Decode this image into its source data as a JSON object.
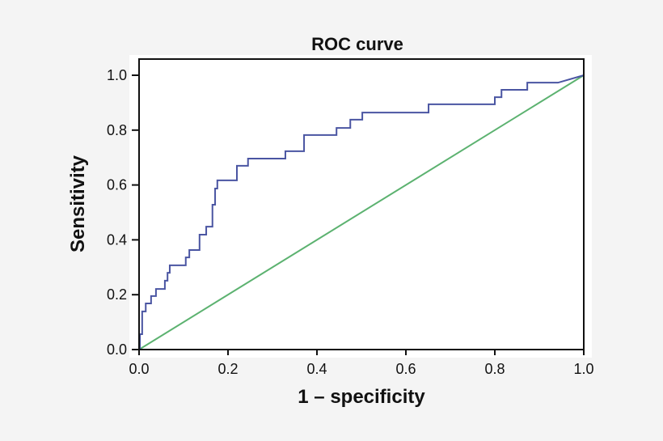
{
  "chart_data": {
    "type": "line",
    "title": "ROC curve",
    "xlabel": "1 – specificity",
    "ylabel": "Sensitivity",
    "xlim": [
      0,
      1
    ],
    "ylim": [
      0,
      1
    ],
    "xticks": [
      "0.0",
      "0.2",
      "0.4",
      "0.6",
      "0.8",
      "1.0"
    ],
    "yticks": [
      "0.0",
      "0.2",
      "0.4",
      "0.6",
      "0.8",
      "1.0"
    ],
    "grid": false,
    "colors": {
      "roc": "#4a55a2",
      "reference": "#5cb270"
    },
    "series": [
      {
        "key": "roc",
        "step": true,
        "points": [
          [
            0.0,
            0.0
          ],
          [
            0.002,
            0.006
          ],
          [
            0.002,
            0.056
          ],
          [
            0.007,
            0.139
          ],
          [
            0.015,
            0.168
          ],
          [
            0.027,
            0.195
          ],
          [
            0.038,
            0.221
          ],
          [
            0.058,
            0.251
          ],
          [
            0.064,
            0.28
          ],
          [
            0.069,
            0.307
          ],
          [
            0.105,
            0.336
          ],
          [
            0.113,
            0.363
          ],
          [
            0.136,
            0.419
          ],
          [
            0.151,
            0.448
          ],
          [
            0.165,
            0.528
          ],
          [
            0.171,
            0.587
          ],
          [
            0.176,
            0.617
          ],
          [
            0.22,
            0.67
          ],
          [
            0.245,
            0.696
          ],
          [
            0.329,
            0.723
          ],
          [
            0.371,
            0.782
          ],
          [
            0.444,
            0.808
          ],
          [
            0.475,
            0.838
          ],
          [
            0.502,
            0.864
          ],
          [
            0.651,
            0.894
          ],
          [
            0.8,
            0.92
          ],
          [
            0.815,
            0.947
          ],
          [
            0.873,
            0.973
          ],
          [
            0.942,
            0.973
          ]
        ],
        "end": [
          1.0,
          1.0
        ]
      },
      {
        "key": "reference",
        "points": [
          [
            0,
            0
          ],
          [
            1,
            1
          ]
        ]
      }
    ]
  }
}
